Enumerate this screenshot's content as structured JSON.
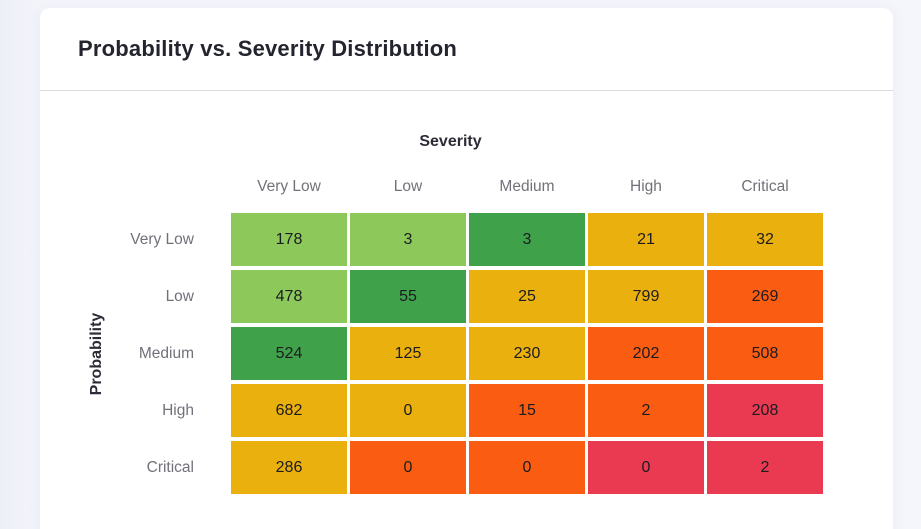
{
  "card": {
    "title": "Probability vs. Severity Distribution"
  },
  "chart_data": {
    "type": "heatmap",
    "title": "Probability vs. Severity Distribution",
    "xlabel": "Severity",
    "ylabel": "Probability",
    "x_categories": [
      "Very Low",
      "Low",
      "Medium",
      "High",
      "Critical"
    ],
    "y_categories": [
      "Very Low",
      "Low",
      "Medium",
      "High",
      "Critical"
    ],
    "palette": {
      "green_light": "#8dc95a",
      "green": "#3fa24b",
      "amber": "#eab00e",
      "orange": "#fa5d12",
      "red": "#ea3a51"
    },
    "rows": [
      {
        "label": "Very Low",
        "cells": [
          {
            "value": 178,
            "color": "green_light"
          },
          {
            "value": 3,
            "color": "green_light"
          },
          {
            "value": 3,
            "color": "green"
          },
          {
            "value": 21,
            "color": "amber"
          },
          {
            "value": 32,
            "color": "amber"
          }
        ]
      },
      {
        "label": "Low",
        "cells": [
          {
            "value": 478,
            "color": "green_light"
          },
          {
            "value": 55,
            "color": "green"
          },
          {
            "value": 25,
            "color": "amber"
          },
          {
            "value": 799,
            "color": "amber"
          },
          {
            "value": 269,
            "color": "orange"
          }
        ]
      },
      {
        "label": "Medium",
        "cells": [
          {
            "value": 524,
            "color": "green"
          },
          {
            "value": 125,
            "color": "amber"
          },
          {
            "value": 230,
            "color": "amber"
          },
          {
            "value": 202,
            "color": "orange"
          },
          {
            "value": 508,
            "color": "orange"
          }
        ]
      },
      {
        "label": "High",
        "cells": [
          {
            "value": 682,
            "color": "amber"
          },
          {
            "value": 0,
            "color": "amber"
          },
          {
            "value": 15,
            "color": "orange"
          },
          {
            "value": 2,
            "color": "orange"
          },
          {
            "value": 208,
            "color": "red"
          }
        ]
      },
      {
        "label": "Critical",
        "cells": [
          {
            "value": 286,
            "color": "amber"
          },
          {
            "value": 0,
            "color": "orange"
          },
          {
            "value": 0,
            "color": "orange"
          },
          {
            "value": 0,
            "color": "red"
          },
          {
            "value": 2,
            "color": "red"
          }
        ]
      }
    ]
  }
}
